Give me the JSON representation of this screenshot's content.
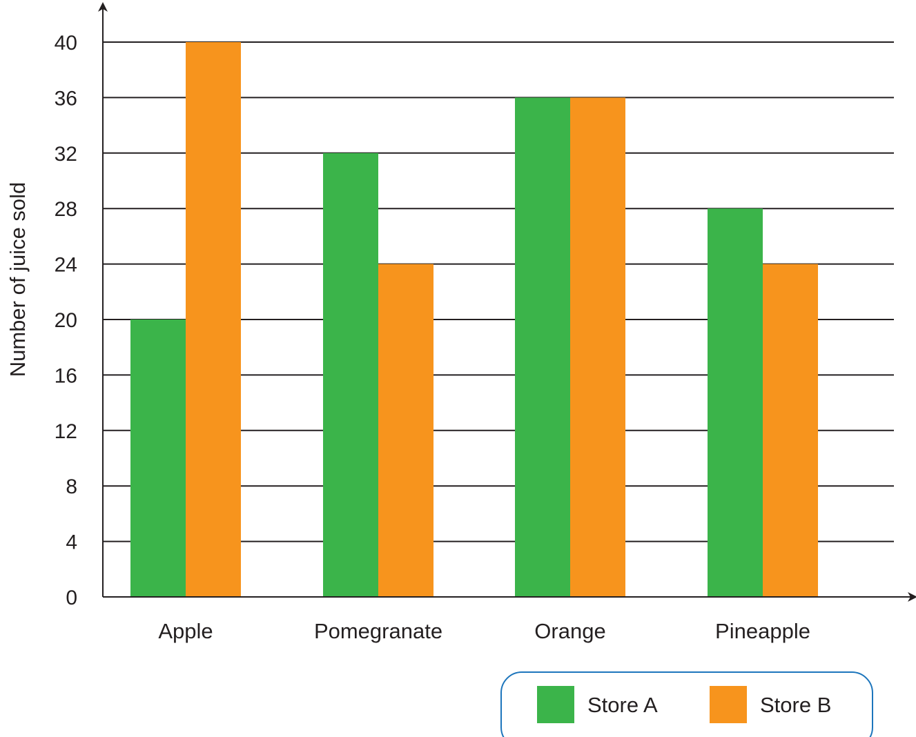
{
  "chart_data": {
    "type": "bar",
    "title": "",
    "xlabel": "",
    "ylabel": "Number of juice sold",
    "categories": [
      "Apple",
      "Pomegranate",
      "Orange",
      "Pineapple"
    ],
    "series": [
      {
        "name": "Store A",
        "values": [
          20,
          32,
          36,
          28
        ],
        "color": "#3bb44a"
      },
      {
        "name": "Store B",
        "values": [
          40,
          24,
          36,
          24
        ],
        "color": "#f7941d"
      }
    ],
    "yticks": [
      0,
      4,
      8,
      12,
      16,
      20,
      24,
      28,
      32,
      36,
      40
    ],
    "ylim": [
      0,
      40
    ],
    "grid": true,
    "legend": "bottom-right"
  },
  "colors": {
    "axis": "#231f20",
    "legend_border": "#1c75bc"
  }
}
